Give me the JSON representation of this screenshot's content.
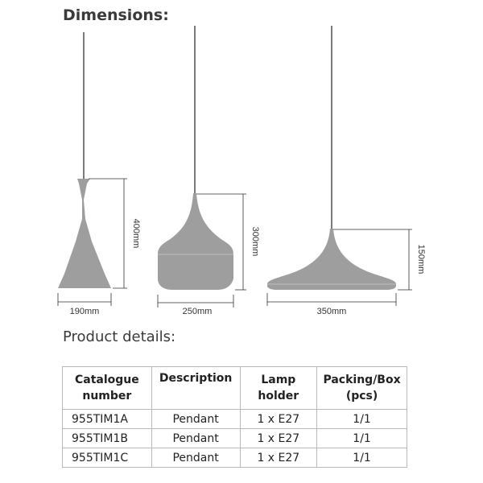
{
  "dimensions": {
    "heading": "Dimensions:",
    "lamps": [
      {
        "width_label": "190mm",
        "height_label": "400mm"
      },
      {
        "width_label": "250mm",
        "height_label": "300mm"
      },
      {
        "width_label": "350mm",
        "height_label": "150mm"
      }
    ]
  },
  "product_details": {
    "heading": "Product details:",
    "columns": [
      {
        "line1": "Catalogue",
        "line2": "number"
      },
      {
        "line1": "Description",
        "line2": ""
      },
      {
        "line1": "Lamp",
        "line2": "holder"
      },
      {
        "line1": "Packing/Box",
        "line2": "(pcs)"
      }
    ],
    "rows": [
      {
        "catalogue": "955TIM1A",
        "description": "Pendant",
        "holder": "1 x E27",
        "packing": "1/1"
      },
      {
        "catalogue": "955TIM1B",
        "description": "Pendant",
        "holder": "1 x E27",
        "packing": "1/1"
      },
      {
        "catalogue": "955TIM1C",
        "description": "Pendant",
        "holder": "1 x E27",
        "packing": "1/1"
      }
    ]
  },
  "colors": {
    "shade": "#9e9e9e",
    "line": "#333333"
  }
}
